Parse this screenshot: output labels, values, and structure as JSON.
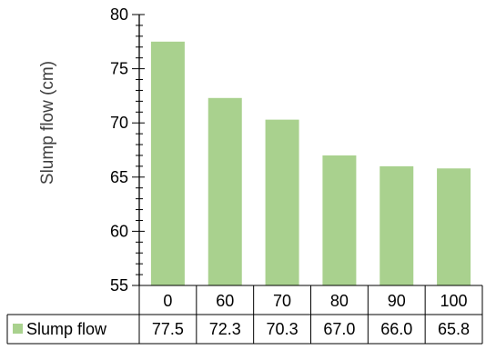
{
  "chart_data": {
    "type": "bar",
    "categories": [
      "0",
      "60",
      "70",
      "80",
      "90",
      "100"
    ],
    "series": [
      {
        "name": "Slump flow",
        "values": [
          77.5,
          72.3,
          70.3,
          67.0,
          66.0,
          65.8
        ],
        "value_labels": [
          "77.5",
          "72.3",
          "70.3",
          "67.0",
          "66.0",
          "65.8"
        ],
        "color": "#a9d18e"
      }
    ],
    "title": "",
    "xlabel": "",
    "ylabel": "Slump flow (cm)",
    "ylim": [
      55,
      80
    ],
    "yticks": [
      55,
      60,
      65,
      70,
      75,
      80
    ],
    "major_step": 5,
    "minor_step": 1,
    "grid": false,
    "data_table": true,
    "legend": "data-table"
  }
}
